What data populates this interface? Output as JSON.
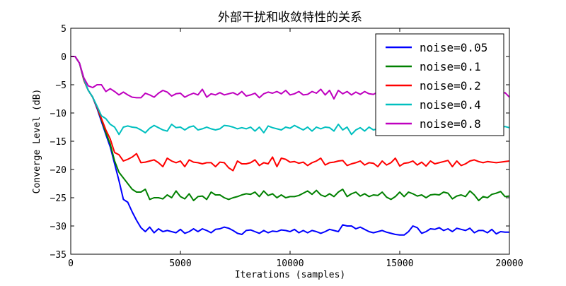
{
  "chart_data": {
    "type": "line",
    "title": "外部干扰和收敛特性的关系",
    "xlabel": "Iterations (samples)",
    "ylabel": "Converge Level (dB)",
    "xlim": [
      0,
      20000
    ],
    "ylim": [
      -35,
      5
    ],
    "xticks": [
      "0",
      "5000",
      "10000",
      "15000",
      "20000"
    ],
    "yticks": [
      "5",
      "0",
      "−5",
      "−10",
      "−15",
      "−20",
      "−25",
      "−30",
      "−35"
    ],
    "grid": false,
    "legend_position": "top-right",
    "x_step": 200,
    "series": [
      {
        "name": "noise=0.05",
        "color": "#0000ff",
        "values": [
          0,
          0,
          -1.2,
          -4.2,
          -6.0,
          -7.2,
          -9.2,
          -11.5,
          -13.8,
          -16.0,
          -19.0,
          -22.0,
          -25.3,
          -25.8,
          -27.5,
          -29.0,
          -30.3,
          -31.0,
          -30.2,
          -31.2,
          -30.5,
          -31.0,
          -30.8,
          -31.0,
          -31.2,
          -30.6,
          -31.3,
          -31.0,
          -30.5,
          -31.0,
          -30.5,
          -30.8,
          -31.2,
          -30.6,
          -30.5,
          -30.2,
          -30.4,
          -30.8,
          -31.3,
          -31.5,
          -30.8,
          -30.7,
          -31.0,
          -31.3,
          -30.8,
          -31.2,
          -30.9,
          -31.0,
          -30.7,
          -30.8,
          -31.0,
          -30.6,
          -31.2,
          -30.8,
          -31.2,
          -30.8,
          -31.0,
          -31.3,
          -31.0,
          -30.6,
          -30.8,
          -31.0,
          -29.8,
          -30.0,
          -30.0,
          -30.5,
          -30.2,
          -30.6,
          -31.0,
          -31.2,
          -31.0,
          -30.8,
          -31.1,
          -31.3,
          -31.5,
          -31.6,
          -31.6,
          -31.0,
          -30.0,
          -30.3,
          -31.3,
          -31.0,
          -30.5,
          -30.6,
          -30.3,
          -30.8,
          -30.5,
          -31.0,
          -30.4,
          -30.6,
          -30.8,
          -30.4,
          -31.2,
          -30.8,
          -30.8,
          -31.2,
          -30.6,
          -31.4,
          -31.0,
          -31.1,
          -31.1
        ]
      },
      {
        "name": "noise=0.1",
        "color": "#008000",
        "values": [
          0,
          0,
          -1.2,
          -4.2,
          -6.0,
          -7.2,
          -9.0,
          -11.2,
          -13.5,
          -15.5,
          -18.5,
          -20.5,
          -21.5,
          -22.5,
          -23.5,
          -24.0,
          -24.0,
          -23.5,
          -25.3,
          -25.0,
          -25.0,
          -25.2,
          -24.5,
          -25.0,
          -23.8,
          -24.8,
          -25.2,
          -24.3,
          -25.5,
          -24.8,
          -24.7,
          -25.3,
          -24.0,
          -24.5,
          -24.5,
          -25.0,
          -25.3,
          -25.0,
          -24.8,
          -24.5,
          -24.3,
          -24.4,
          -24.0,
          -24.8,
          -23.8,
          -24.6,
          -24.3,
          -25.0,
          -24.5,
          -25.0,
          -24.8,
          -24.8,
          -24.6,
          -24.2,
          -23.8,
          -24.4,
          -23.7,
          -24.5,
          -24.8,
          -24.3,
          -24.8,
          -24.0,
          -23.5,
          -24.8,
          -24.3,
          -24.0,
          -24.7,
          -24.3,
          -24.8,
          -24.5,
          -24.6,
          -24.0,
          -24.9,
          -25.3,
          -24.8,
          -24.0,
          -24.8,
          -24.0,
          -24.3,
          -24.7,
          -24.5,
          -25.0,
          -24.5,
          -24.4,
          -24.5,
          -24.0,
          -24.2,
          -25.2,
          -24.7,
          -24.5,
          -24.8,
          -23.8,
          -24.5,
          -25.5,
          -24.8,
          -25.0,
          -24.4,
          -24.2,
          -23.9,
          -24.8,
          -24.7
        ]
      },
      {
        "name": "noise=0.2",
        "color": "#ff0000",
        "values": [
          0,
          0,
          -1.2,
          -4.2,
          -6.0,
          -7.2,
          -9.0,
          -11.0,
          -13.0,
          -14.6,
          -17.0,
          -17.4,
          -18.5,
          -18.2,
          -17.8,
          -17.2,
          -18.8,
          -18.7,
          -18.5,
          -18.3,
          -18.8,
          -19.5,
          -18.0,
          -18.5,
          -18.8,
          -18.5,
          -19.5,
          -18.3,
          -18.7,
          -18.8,
          -19.0,
          -18.8,
          -18.8,
          -19.5,
          -18.7,
          -18.8,
          -19.7,
          -20.2,
          -18.5,
          -19.0,
          -19.0,
          -18.8,
          -18.3,
          -19.3,
          -18.8,
          -19.0,
          -17.8,
          -19.5,
          -18.0,
          -18.2,
          -18.7,
          -18.6,
          -18.9,
          -18.7,
          -19.3,
          -18.8,
          -18.5,
          -18.0,
          -19.2,
          -18.8,
          -18.7,
          -18.5,
          -18.4,
          -19.3,
          -19.0,
          -18.8,
          -18.5,
          -19.2,
          -18.8,
          -18.9,
          -19.5,
          -18.5,
          -19.2,
          -18.8,
          -18.0,
          -19.4,
          -18.9,
          -18.8,
          -18.5,
          -19.2,
          -18.7,
          -19.4,
          -18.5,
          -19.0,
          -18.8,
          -18.6,
          -18.4,
          -19.5,
          -18.5,
          -19.3,
          -19.0,
          -18.5,
          -18.3,
          -18.6,
          -18.8,
          -18.6,
          -18.7,
          -18.8,
          -18.7,
          -18.6,
          -18.5
        ]
      },
      {
        "name": "noise=0.4",
        "color": "#00bfbf",
        "values": [
          0,
          0,
          -1.2,
          -4.0,
          -6.0,
          -7.2,
          -8.8,
          -10.5,
          -11.0,
          -12.0,
          -12.5,
          -13.8,
          -12.5,
          -12.3,
          -12.5,
          -12.6,
          -13.0,
          -13.5,
          -12.7,
          -12.2,
          -12.6,
          -13.0,
          -13.2,
          -12.0,
          -12.6,
          -12.5,
          -13.0,
          -12.5,
          -12.3,
          -13.0,
          -12.8,
          -12.5,
          -12.8,
          -13.0,
          -12.8,
          -12.2,
          -12.3,
          -12.5,
          -12.8,
          -12.6,
          -12.8,
          -12.5,
          -13.2,
          -12.5,
          -13.5,
          -12.3,
          -12.6,
          -12.8,
          -13.0,
          -12.5,
          -12.7,
          -12.2,
          -12.6,
          -13.0,
          -12.5,
          -13.2,
          -12.5,
          -12.8,
          -12.5,
          -12.6,
          -13.2,
          -12.0,
          -13.0,
          -12.5,
          -13.8,
          -13.0,
          -12.6,
          -13.2,
          -12.5,
          -13.0,
          -12.8,
          -12.5,
          -12.8,
          -13.2,
          -12.5,
          -12.8,
          -12.4,
          -13.0,
          -12.5,
          -12.9,
          -12.7,
          -13.0,
          -12.6,
          -12.3,
          -12.5,
          -13.0,
          -12.8,
          -12.5,
          -12.9,
          -12.6,
          -12.4,
          -12.7,
          -12.2,
          -12.8,
          -12.5,
          -12.8,
          -12.4,
          -12.6,
          -12.5,
          -12.4,
          -12.6
        ]
      },
      {
        "name": "noise=0.8",
        "color": "#bf00bf",
        "values": [
          0,
          0,
          -1.2,
          -3.8,
          -5.2,
          -5.5,
          -5.0,
          -5.0,
          -6.2,
          -5.7,
          -6.2,
          -6.8,
          -6.3,
          -6.8,
          -7.2,
          -7.3,
          -7.3,
          -6.5,
          -6.8,
          -7.2,
          -6.5,
          -6.0,
          -6.3,
          -7.0,
          -6.6,
          -6.5,
          -7.2,
          -6.8,
          -6.5,
          -6.8,
          -5.8,
          -7.2,
          -6.6,
          -6.8,
          -6.4,
          -6.8,
          -6.6,
          -6.4,
          -6.8,
          -6.2,
          -7.0,
          -6.8,
          -6.5,
          -7.3,
          -6.6,
          -6.3,
          -6.5,
          -6.2,
          -6.6,
          -6.0,
          -6.8,
          -6.6,
          -6.2,
          -6.8,
          -6.7,
          -6.2,
          -6.5,
          -5.8,
          -6.8,
          -6.0,
          -7.5,
          -6.0,
          -6.6,
          -6.2,
          -6.8,
          -6.3,
          -6.7,
          -6.2,
          -6.6,
          -6.7,
          -6.3,
          -6.8,
          -6.4,
          -6.6,
          -6.8,
          -6.5,
          -6.7,
          -6.4,
          -6.7,
          -6.5,
          -6.6,
          -6.5,
          -6.3,
          -6.8,
          -6.6,
          -6.5,
          -6.4,
          -6.6,
          -6.6,
          -6.4,
          -6.8,
          -6.5,
          -6.6,
          -6.5,
          -6.6,
          -6.4,
          -6.6,
          -6.5,
          -6.6,
          -6.4,
          -7.2
        ]
      }
    ]
  }
}
